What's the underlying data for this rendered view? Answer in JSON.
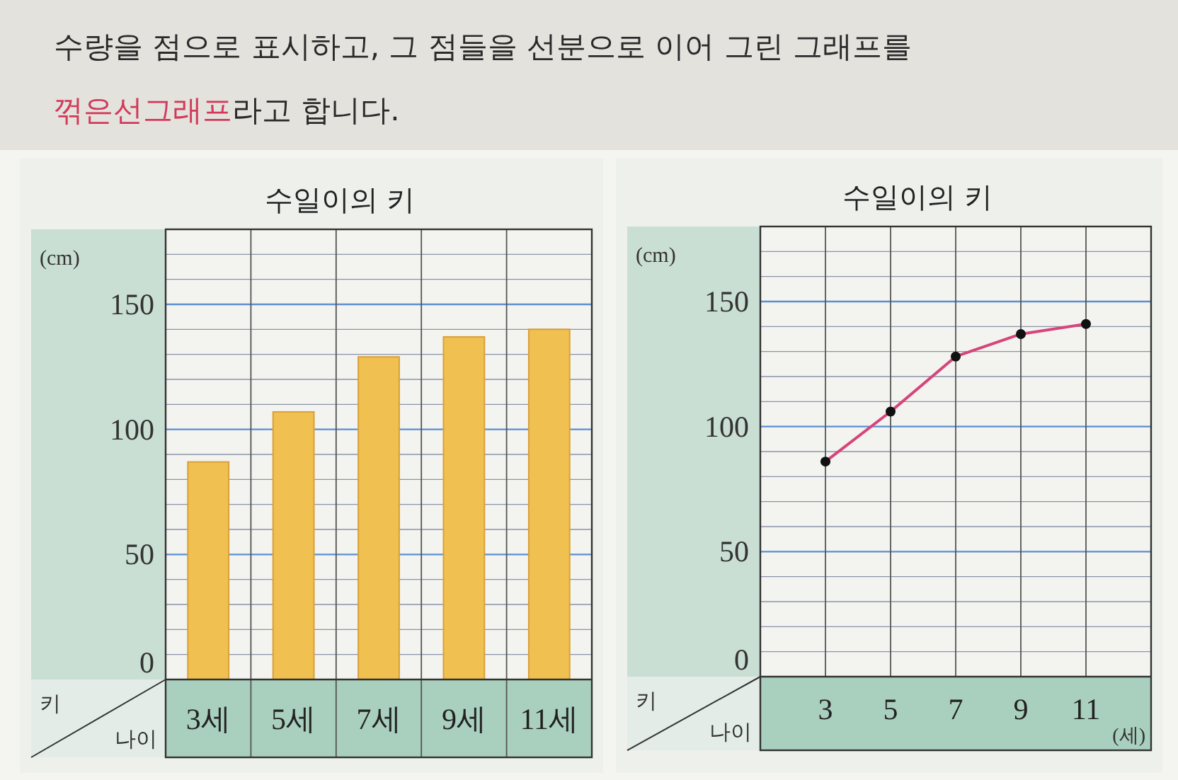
{
  "chart_data": [
    {
      "type": "other",
      "annotations": [
        "수량을 점으로 표시하고, 그 점들을 선분으로 이어 그린 그래프를",
        "꺾은선그래프",
        "라고 합니다."
      ]
    },
    {
      "type": "bar",
      "title": "수일이의 키",
      "ylabel": "키",
      "xlabel": "나이",
      "annotations": [
        "(cm)"
      ],
      "categories": [
        "3세",
        "5세",
        "7세",
        "9세",
        "11세"
      ],
      "values": [
        87,
        107,
        129,
        137,
        140
      ],
      "color": "#f0c050",
      "ylim": [
        0,
        180
      ],
      "yticks": [
        0,
        {
          "value": 10,
          "label": null
        },
        {
          "value": 20,
          "label": null
        },
        {
          "value": 30,
          "label": null
        },
        {
          "value": 40,
          "label": null
        },
        50,
        {
          "value": 60,
          "label": null
        },
        {
          "value": 70,
          "label": null
        },
        {
          "value": 80,
          "label": null
        },
        {
          "value": 90,
          "label": null
        },
        100,
        {
          "value": 110,
          "label": null
        },
        {
          "value": 120,
          "label": null
        },
        {
          "value": 130,
          "label": null
        },
        {
          "value": 140,
          "label": null
        },
        150,
        {
          "value": 160,
          "label": null
        },
        {
          "value": 170,
          "label": null
        }
      ],
      "grid": true
    },
    {
      "type": "line",
      "title": "수일이의 키",
      "ylabel": "키",
      "xlabel": "나이",
      "annotations": [
        "(cm)",
        "(세)"
      ],
      "x": [
        3,
        5,
        7,
        9,
        11
      ],
      "values": [
        86,
        106,
        128,
        137,
        141
      ],
      "color": "#d6457a",
      "marker": "circle",
      "xlim": [
        1,
        13
      ],
      "xticks": [
        3,
        5,
        7,
        9,
        11
      ],
      "ylim": [
        0,
        180
      ],
      "yticks": [
        0,
        {
          "value": 10,
          "label": null
        },
        {
          "value": 20,
          "label": null
        },
        {
          "value": 30,
          "label": null
        },
        {
          "value": 40,
          "label": null
        },
        50,
        {
          "value": 60,
          "label": null
        },
        {
          "value": 70,
          "label": null
        },
        {
          "value": 80,
          "label": null
        },
        {
          "value": 90,
          "label": null
        },
        100,
        {
          "value": 110,
          "label": null
        },
        {
          "value": 120,
          "label": null
        },
        {
          "value": 130,
          "label": null
        },
        {
          "value": 140,
          "label": null
        },
        150,
        {
          "value": 160,
          "label": null
        },
        {
          "value": 170,
          "label": null
        }
      ],
      "grid": true
    }
  ]
}
